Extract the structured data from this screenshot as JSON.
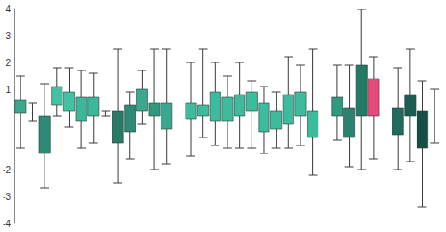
{
  "chart_data": {
    "type": "box",
    "categories": [
      null,
      null,
      null,
      null,
      null,
      null,
      null,
      null,
      null,
      null,
      null,
      null,
      null,
      null,
      null,
      null,
      null,
      null,
      null,
      null,
      null,
      null,
      null,
      null,
      null,
      null,
      null,
      null,
      null,
      null,
      null,
      null,
      null,
      null,
      null
    ],
    "box": [
      [
        0.1,
        0.6
      ],
      null,
      [
        -1.4,
        0.0
      ],
      [
        0.4,
        1.1
      ],
      [
        0.2,
        0.9
      ],
      [
        -0.2,
        0.7
      ],
      [
        0.0,
        0.7
      ],
      null,
      [
        -1.0,
        0.2
      ],
      [
        -0.6,
        0.4
      ],
      [
        0.2,
        1.0
      ],
      [
        0.0,
        0.5
      ],
      [
        -0.5,
        0.5
      ],
      null,
      [
        -0.1,
        0.5
      ],
      [
        0.0,
        0.4
      ],
      [
        -0.2,
        0.9
      ],
      [
        -0.2,
        0.7
      ],
      [
        0.0,
        0.8
      ],
      [
        0.2,
        0.9
      ],
      [
        -0.6,
        0.5
      ],
      [
        -0.5,
        0.2
      ],
      [
        -0.3,
        0.8
      ],
      [
        0.0,
        0.9
      ],
      [
        -0.8,
        0.2
      ],
      null,
      [
        0.0,
        0.7
      ],
      [
        -0.8,
        0.3
      ],
      [
        0.0,
        1.9
      ],
      [
        0.0,
        1.4
      ],
      null,
      [
        -0.7,
        0.3
      ],
      [
        0.0,
        0.8
      ],
      [
        -1.2,
        0.2
      ],
      null
    ],
    "whiskers": [
      [
        -1.2,
        1.5
      ],
      [
        -0.2,
        0.5
      ],
      [
        -2.7,
        1.2
      ],
      [
        0.0,
        1.8
      ],
      [
        -0.4,
        1.8
      ],
      [
        -1.2,
        1.7
      ],
      [
        -1.0,
        1.6
      ],
      [
        0.0,
        0.2
      ],
      [
        -2.5,
        2.5
      ],
      [
        -1.6,
        0.9
      ],
      [
        -0.3,
        1.7
      ],
      [
        -2.0,
        2.5
      ],
      [
        -1.8,
        2.5
      ],
      null,
      [
        -1.5,
        2.0
      ],
      [
        -0.8,
        2.5
      ],
      [
        -1.1,
        2.0
      ],
      [
        -1.2,
        1.5
      ],
      [
        -1.2,
        2.0
      ],
      [
        -1.2,
        1.3
      ],
      [
        -1.4,
        1.1
      ],
      [
        -1.2,
        0.9
      ],
      [
        -1.2,
        2.2
      ],
      [
        -1.1,
        1.9
      ],
      [
        -2.2,
        2.5
      ],
      null,
      [
        -0.9,
        1.9
      ],
      [
        -1.9,
        1.9
      ],
      [
        -2.0,
        4.0
      ],
      [
        -1.6,
        2.2
      ],
      null,
      [
        -2.0,
        1.8
      ],
      [
        -1.7,
        2.5
      ],
      [
        -3.4,
        1.3
      ],
      [
        -1.0,
        1.0
      ]
    ],
    "colors": [
      "#3aa88e",
      null,
      "#2e8a74",
      "#41c2a2",
      "#41c2a2",
      "#3db69a",
      "#3db69a",
      null,
      "#2b7a68",
      "#2e8a74",
      "#3aa88e",
      "#2f9980",
      "#3aa88e",
      null,
      "#3cbc9c",
      "#3cbc9c",
      "#3cbc9c",
      "#3cbc9c",
      "#3cbc9c",
      "#3cbc9c",
      "#3cbc9c",
      "#3cbc9c",
      "#3cbc9c",
      "#3cbc9c",
      "#3cbc9c",
      null,
      "#2e9a80",
      "#2b8270",
      "#237a66",
      "#e8487a",
      null,
      "#1f6b5d",
      "#1a5e52",
      "#164d45",
      null
    ],
    "ylim": [
      -4,
      4
    ],
    "yticks": [
      -4,
      -3,
      -2,
      1,
      2,
      3,
      4
    ],
    "grid": false,
    "tick_labels": "y"
  }
}
